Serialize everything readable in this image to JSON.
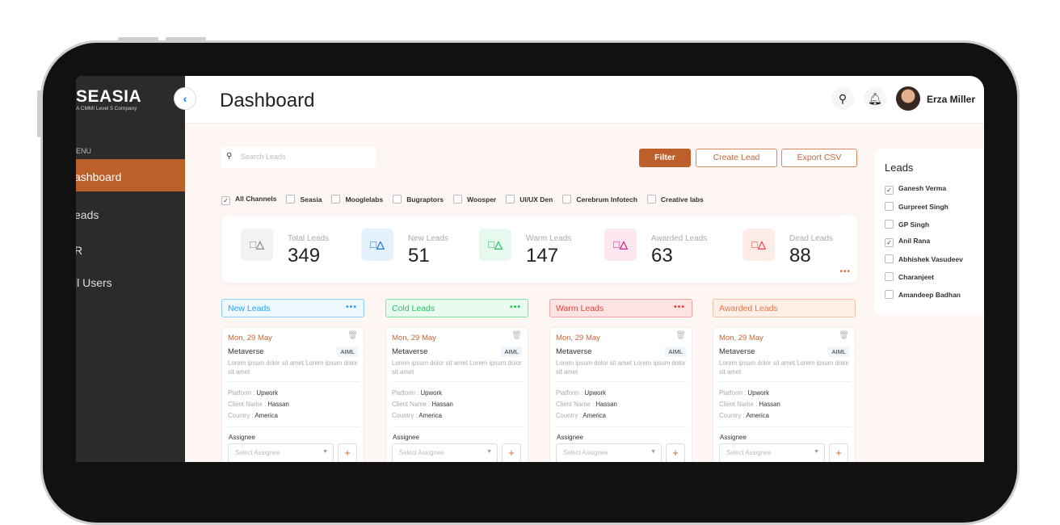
{
  "brand": {
    "logo": "SEASIA",
    "tagline": "A CMMI Level 5 Company"
  },
  "sidebar": {
    "menu_label": "ENU",
    "items": [
      {
        "label": "ashboard",
        "active": true
      },
      {
        "label": "eads"
      },
      {
        "label": "R"
      },
      {
        "label": "ll Users"
      }
    ]
  },
  "header": {
    "title": "Dashboard",
    "user_name": "Erza Miller",
    "search_icon": "search-icon",
    "bell_icon": "bell-icon"
  },
  "toolbar": {
    "search_placeholder": "Search Leads",
    "filter": "Filter",
    "create_lead": "Create Lead",
    "export_csv": "Export CSV"
  },
  "channels": [
    {
      "label": "All Channels",
      "checked": true
    },
    {
      "label": "Seasia",
      "checked": false
    },
    {
      "label": "Mooglelabs",
      "checked": false
    },
    {
      "label": "Bugraptors",
      "checked": false
    },
    {
      "label": "Woosper",
      "checked": false
    },
    {
      "label": "UI/UX Den",
      "checked": false
    },
    {
      "label": "Cerebrum Infotech",
      "checked": false
    },
    {
      "label": "Creative labs",
      "checked": false
    }
  ],
  "stats": [
    {
      "label": "Total Leads",
      "value": "349",
      "color": "#8a8a8a",
      "bg": "#f2f2f2"
    },
    {
      "label": "New Leads",
      "value": "51",
      "color": "#1a73e8",
      "bg": "#e5f1fd"
    },
    {
      "label": "Warm Leads",
      "value": "147",
      "color": "#22c55e",
      "bg": "#e7f8ee"
    },
    {
      "label": "Awarded Leads",
      "value": "63",
      "color": "#d6188a",
      "bg": "#fde8f1"
    },
    {
      "label": "Dead Leads",
      "value": "88",
      "color": "#ef4444",
      "bg": "#fdece8"
    }
  ],
  "columns": [
    {
      "title": "New Leads",
      "color": "#2aa3f5",
      "bg": "#eef8ff",
      "border": "#8ccdfb",
      "more": true
    },
    {
      "title": "Cold Leads",
      "color": "#22c55e",
      "bg": "#e8fbee",
      "border": "#7ee2a1",
      "more": true
    },
    {
      "title": "Warm Leads",
      "color": "#e0443a",
      "bg": "#fde3e3",
      "border": "#f3a3a3",
      "more": true
    },
    {
      "title": "Awarded Leads",
      "color": "#e9764c",
      "bg": "#fdeee6",
      "border": "#f6c2aa",
      "more": false
    }
  ],
  "card": {
    "date": "Mon, 29 May",
    "name": "Metaverse",
    "tag": "AIML",
    "description": "Lorem ipsum dolor sit amet Lorem ipsum dolor sit amet",
    "platform_label": "Platform :",
    "platform": "Upwork",
    "client_label": "Client Name :",
    "client": "Hassan",
    "country_label": "Country :",
    "country": "America",
    "assignee_label": "Assignee",
    "assignee_placeholder": "Select Assignee"
  },
  "leads_panel": {
    "title": "Leads",
    "items": [
      {
        "label": "Ganesh Verma",
        "checked": true
      },
      {
        "label": "Gurpreet Singh",
        "checked": false
      },
      {
        "label": "GP Singh",
        "checked": false
      },
      {
        "label": "Anil Rana",
        "checked": true
      },
      {
        "label": "Abhishek Vasudeev",
        "checked": false
      },
      {
        "label": "Charanjeet",
        "checked": false
      },
      {
        "label": "Amandeep Badhan",
        "checked": false
      }
    ]
  }
}
